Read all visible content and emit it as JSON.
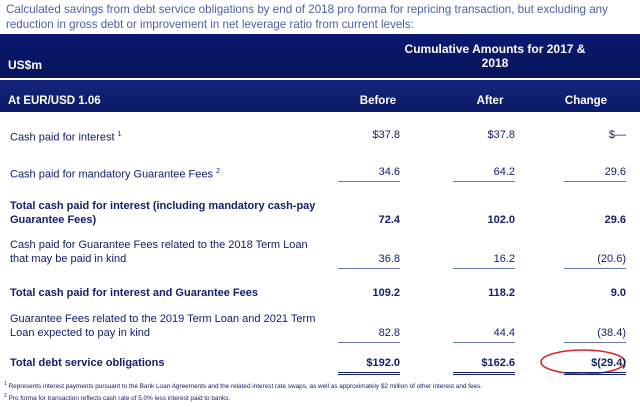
{
  "intro": "Calculated savings from debt service obligations by end of 2018 pro forma for repricing transaction, but excluding any reduction in gross debt or improvement in net leverage ratio from current levels:",
  "table": {
    "unit": "US$m",
    "group_header": "Cumulative Amounts for 2017 & 2018",
    "rate_label": "At EUR/USD 1.06",
    "columns": [
      "Before",
      "After",
      "Change"
    ],
    "rows": [
      {
        "label": "Cash paid for interest",
        "note": "1",
        "values": [
          "$37.8",
          "$37.8",
          "$—"
        ]
      },
      {
        "label": "Cash paid for mandatory Guarantee Fees",
        "note": "2",
        "values": [
          "34.6",
          "64.2",
          "29.6"
        ]
      },
      {
        "label": "Total cash paid for interest (including mandatory cash-pay Guarantee Fees)",
        "values": [
          "72.4",
          "102.0",
          "29.6"
        ]
      },
      {
        "label": "Cash paid for Guarantee Fees related to the 2018 Term Loan that may be paid in kind",
        "values": [
          "36.8",
          "16.2",
          "(20.6)"
        ]
      },
      {
        "label": "Total cash paid for interest and Guarantee Fees",
        "values": [
          "109.2",
          "118.2",
          "9.0"
        ]
      },
      {
        "label": "Guarantee Fees related to the 2019 Term Loan and 2021 Term Loan expected to pay in kind",
        "values": [
          "82.8",
          "44.4",
          "(38.4)"
        ]
      },
      {
        "label": "Total debt service obligations",
        "values": [
          "$192.0",
          "$162.6",
          "$(29.4)"
        ]
      }
    ]
  },
  "footnotes": [
    {
      "mark": "1",
      "text": "Represents interest payments pursuant to the Bank Loan Agreements and the related interest rate swaps, as well as approximately $2 million of other interest and fees."
    },
    {
      "mark": "2",
      "text": "Pro forma for transaction reflects cash rate of 5.0% less interest paid to banks."
    }
  ]
}
